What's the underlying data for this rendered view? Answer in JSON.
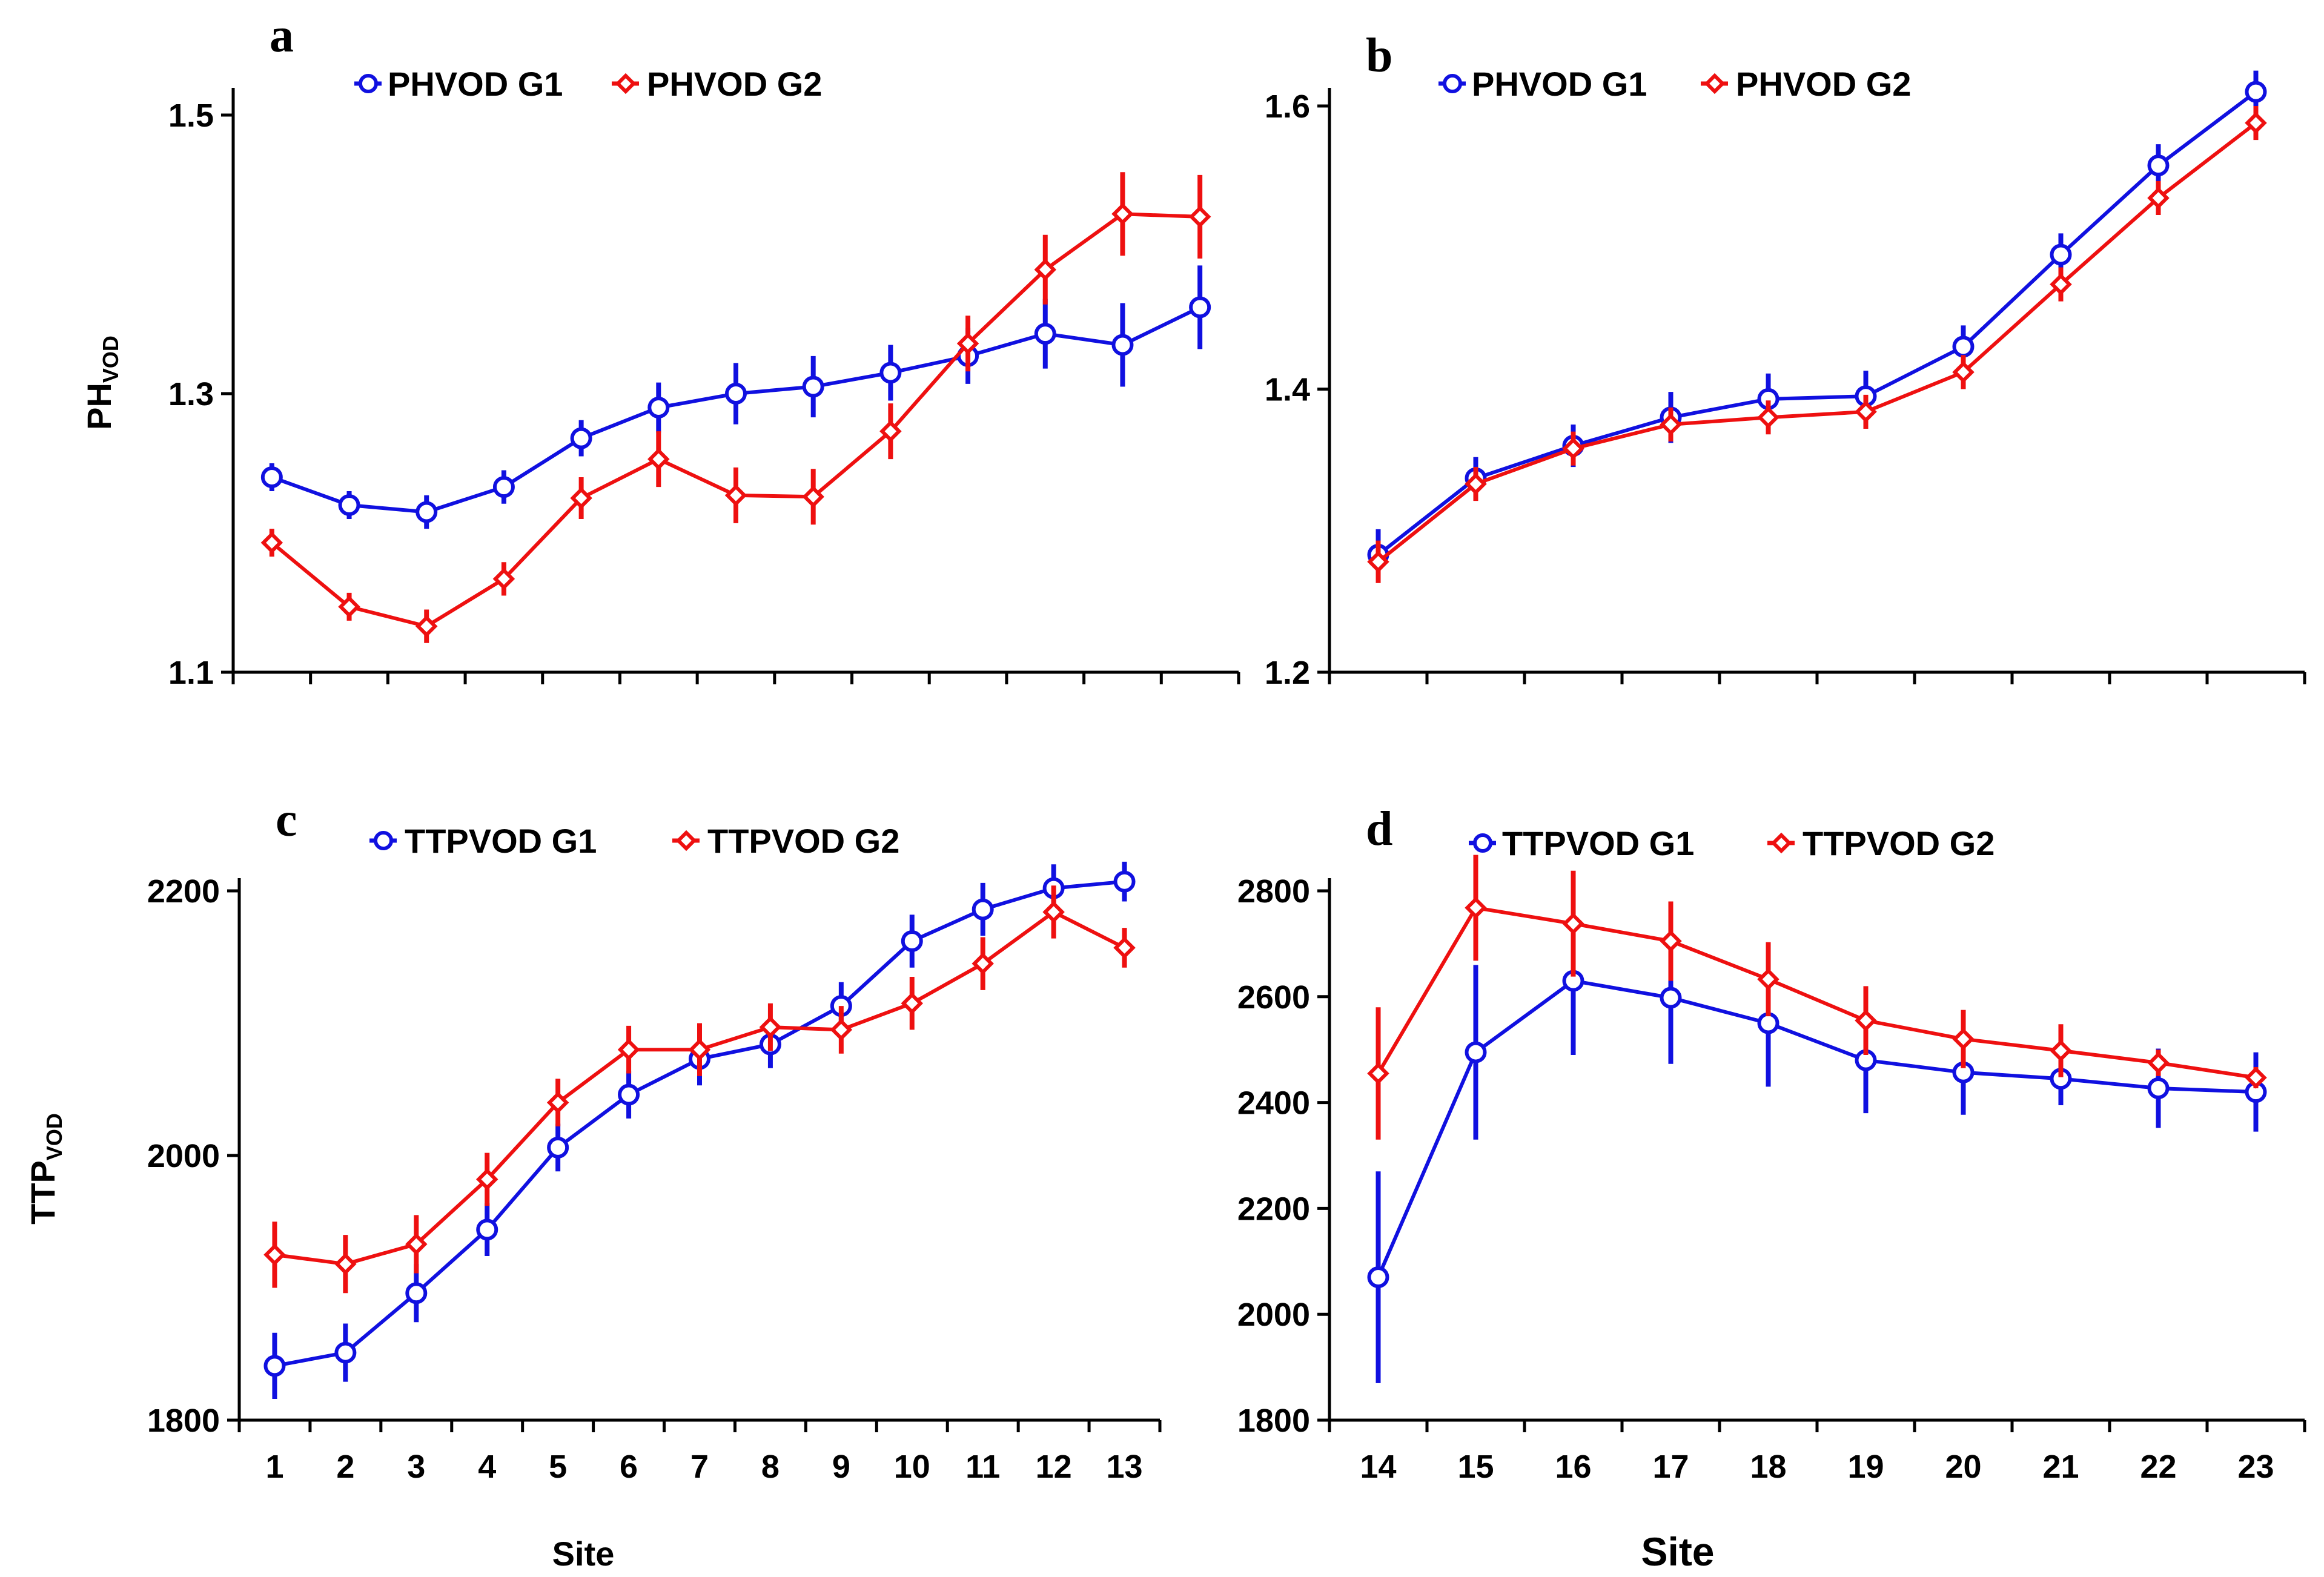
{
  "chart_data": [
    {
      "panel": "a",
      "type": "line",
      "ylabel": "PH",
      "ylabel_sub": "VOD",
      "xlabel": "",
      "ylim": [
        1.1,
        1.5
      ],
      "yticks": [
        "1.1",
        "1.3",
        "1.5"
      ],
      "x": [
        1,
        2,
        3,
        4,
        5,
        6,
        7,
        8,
        9,
        10,
        11,
        12,
        13
      ],
      "xticklabels": [],
      "series": [
        {
          "name": "PHVOD G1",
          "color": "#1010e0",
          "marker": "circle",
          "values": [
            1.24,
            1.22,
            1.215,
            1.233,
            1.268,
            1.29,
            1.3,
            1.305,
            1.315,
            1.327,
            1.343,
            1.335,
            1.362
          ],
          "errors": [
            0.01,
            0.01,
            0.012,
            0.012,
            0.013,
            0.018,
            0.022,
            0.022,
            0.02,
            0.02,
            0.025,
            0.03,
            0.03
          ]
        },
        {
          "name": "PHVOD G2",
          "color": "#ee1010",
          "marker": "diamond",
          "values": [
            1.193,
            1.147,
            1.133,
            1.167,
            1.225,
            1.253,
            1.227,
            1.226,
            1.273,
            1.336,
            1.389,
            1.429,
            1.427
          ],
          "errors": [
            0.01,
            0.01,
            0.012,
            0.012,
            0.015,
            0.02,
            0.02,
            0.02,
            0.02,
            0.02,
            0.025,
            0.03,
            0.03
          ]
        }
      ]
    },
    {
      "panel": "b",
      "type": "line",
      "ylabel": "",
      "xlabel": "",
      "ylim": [
        1.2,
        1.6
      ],
      "yticks": [
        "1.2",
        "1.4",
        "1.6"
      ],
      "x": [
        14,
        15,
        16,
        17,
        18,
        19,
        20,
        21,
        22,
        23
      ],
      "xticklabels": [],
      "series": [
        {
          "name": "PHVOD G1",
          "color": "#1010e0",
          "marker": "circle",
          "values": [
            1.283,
            1.337,
            1.36,
            1.38,
            1.393,
            1.395,
            1.43,
            1.495,
            1.558,
            1.61
          ],
          "errors": [
            0.018,
            0.015,
            0.015,
            0.018,
            0.018,
            0.018,
            0.015,
            0.015,
            0.015,
            0.015
          ]
        },
        {
          "name": "PHVOD G2",
          "color": "#ee1010",
          "marker": "diamond",
          "values": [
            1.278,
            1.333,
            1.358,
            1.375,
            1.38,
            1.384,
            1.412,
            1.474,
            1.535,
            1.588
          ],
          "errors": [
            0.015,
            0.012,
            0.012,
            0.012,
            0.012,
            0.012,
            0.012,
            0.012,
            0.012,
            0.012
          ]
        }
      ]
    },
    {
      "panel": "c",
      "type": "line",
      "ylabel": "TTP",
      "ylabel_sub": "VOD",
      "xlabel": "Site",
      "ylim": [
        1800,
        2200
      ],
      "yticks": [
        "1800",
        "2000",
        "2200"
      ],
      "x": [
        1,
        2,
        3,
        4,
        5,
        6,
        7,
        8,
        9,
        10,
        11,
        12,
        13
      ],
      "xticklabels": [
        "1",
        "2",
        "3",
        "4",
        "5",
        "6",
        "7",
        "8",
        "9",
        "10",
        "11",
        "12",
        "13"
      ],
      "series": [
        {
          "name": "TTPVOD G1",
          "color": "#1010e0",
          "marker": "circle",
          "values": [
            1841,
            1851,
            1896,
            1944,
            2006,
            2046,
            2073,
            2084,
            2113,
            2162,
            2186,
            2202,
            2207
          ],
          "errors": [
            25,
            22,
            22,
            20,
            18,
            18,
            20,
            18,
            18,
            20,
            20,
            18,
            15
          ]
        },
        {
          "name": "TTPVOD G2",
          "color": "#ee1010",
          "marker": "diamond",
          "values": [
            1925,
            1918,
            1933,
            1982,
            2040,
            2080,
            2080,
            2097,
            2095,
            2115,
            2145,
            2184,
            2157
          ],
          "errors": [
            25,
            22,
            22,
            20,
            18,
            18,
            20,
            18,
            18,
            20,
            20,
            20,
            15
          ]
        }
      ]
    },
    {
      "panel": "d",
      "type": "line",
      "ylabel": "",
      "xlabel": "Site",
      "ylim": [
        1800,
        2800
      ],
      "yticks": [
        "1800",
        "2000",
        "2200",
        "2400",
        "2600",
        "2800"
      ],
      "x": [
        14,
        15,
        16,
        17,
        18,
        19,
        20,
        21,
        22,
        23
      ],
      "xticklabels": [
        "14",
        "15",
        "16",
        "17",
        "18",
        "19",
        "20",
        "21",
        "22",
        "23"
      ],
      "series": [
        {
          "name": "TTPVOD G1",
          "color": "#1010e0",
          "marker": "circle",
          "values": [
            2070,
            2495,
            2630,
            2598,
            2550,
            2480,
            2457,
            2445,
            2427,
            2420
          ],
          "errors": [
            200,
            165,
            140,
            125,
            120,
            100,
            80,
            50,
            75,
            75
          ]
        },
        {
          "name": "TTPVOD G2",
          "color": "#ee1010",
          "marker": "diamond",
          "values": [
            2455,
            2768,
            2738,
            2705,
            2633,
            2555,
            2520,
            2498,
            2475,
            2447
          ],
          "errors": [
            125,
            100,
            100,
            75,
            70,
            65,
            55,
            50,
            25,
            20
          ]
        }
      ]
    }
  ]
}
